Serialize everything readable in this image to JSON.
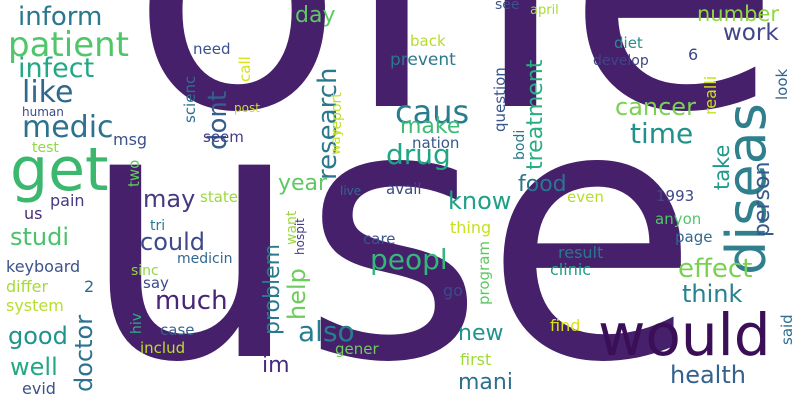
{
  "words": [
    {
      "text": "one",
      "color": "#46206b"
    },
    {
      "text": "use",
      "color": "#46206b"
    },
    {
      "text": "get",
      "color": "#3bb86d"
    },
    {
      "text": "would",
      "color": "#3a0f57"
    },
    {
      "text": "diseas",
      "color": "#2f7f8d"
    },
    {
      "text": "patient",
      "color": "#51c56a"
    },
    {
      "text": "inform",
      "color": "#2a788e"
    },
    {
      "text": "infect",
      "color": "#22a884"
    },
    {
      "text": "like",
      "color": "#31688e"
    },
    {
      "text": "medic",
      "color": "#2c728e"
    },
    {
      "text": "dont",
      "color": "#355f8d"
    },
    {
      "text": "caus",
      "color": "#287c8e"
    },
    {
      "text": "research",
      "color": "#2a788e"
    },
    {
      "text": "treatment",
      "color": "#29af7f"
    },
    {
      "text": "cancer",
      "color": "#7ad151"
    },
    {
      "text": "time",
      "color": "#21918c"
    },
    {
      "text": "work",
      "color": "#404688"
    },
    {
      "text": "number",
      "color": "#8fd744"
    },
    {
      "text": "day",
      "color": "#5ec962"
    },
    {
      "text": "make",
      "color": "#3dbc74"
    },
    {
      "text": "drug",
      "color": "#21a685"
    },
    {
      "text": "take",
      "color": "#1f9a8a"
    },
    {
      "text": "person",
      "color": "#38598c"
    },
    {
      "text": "food",
      "color": "#2b758e"
    },
    {
      "text": "year",
      "color": "#5ec962"
    },
    {
      "text": "know",
      "color": "#1fa088"
    },
    {
      "text": "may",
      "color": "#443983"
    },
    {
      "text": "studi",
      "color": "#4ac16d"
    },
    {
      "text": "could",
      "color": "#3e4989"
    },
    {
      "text": "peopl",
      "color": "#35b779"
    },
    {
      "text": "effect",
      "color": "#7ad151"
    },
    {
      "text": "think",
      "color": "#26828e"
    },
    {
      "text": "much",
      "color": "#482576"
    },
    {
      "text": "problem",
      "color": "#2a788e"
    },
    {
      "text": "help",
      "color": "#6ccd5a"
    },
    {
      "text": "also",
      "color": "#277f8e"
    },
    {
      "text": "good",
      "color": "#1f948c"
    },
    {
      "text": "doctor",
      "color": "#2c728e"
    },
    {
      "text": "well",
      "color": "#22a884"
    },
    {
      "text": "im",
      "color": "#472a7a"
    },
    {
      "text": "new",
      "color": "#1f948c"
    },
    {
      "text": "mani",
      "color": "#2d708e"
    },
    {
      "text": "health",
      "color": "#34618d"
    },
    {
      "text": "msg",
      "color": "#3b528b"
    },
    {
      "text": "test",
      "color": "#8fd744"
    },
    {
      "text": "human",
      "color": "#3e4989"
    },
    {
      "text": "two",
      "color": "#63cb5f"
    },
    {
      "text": "us",
      "color": "#472d7b"
    },
    {
      "text": "pain",
      "color": "#443a83"
    },
    {
      "text": "keyboard",
      "color": "#3b528b"
    },
    {
      "text": "differ",
      "color": "#a5db36"
    },
    {
      "text": "2",
      "color": "#31688e"
    },
    {
      "text": "system",
      "color": "#b5de2b"
    },
    {
      "text": "evid",
      "color": "#3b528b"
    },
    {
      "text": "tri",
      "color": "#287c8e"
    },
    {
      "text": "sinc",
      "color": "#8fd744"
    },
    {
      "text": "medicin",
      "color": "#31688e"
    },
    {
      "text": "say",
      "color": "#3e4989"
    },
    {
      "text": "hiv",
      "color": "#2ab07f"
    },
    {
      "text": "case",
      "color": "#355f8d"
    },
    {
      "text": "includ",
      "color": "#bddf26"
    },
    {
      "text": "need",
      "color": "#3b528b"
    },
    {
      "text": "scienc",
      "color": "#2e6e8e"
    },
    {
      "text": "seem",
      "color": "#443a83"
    },
    {
      "text": "post",
      "color": "#c8e020"
    },
    {
      "text": "call",
      "color": "#d8e219"
    },
    {
      "text": "report",
      "color": "#bddf26"
    },
    {
      "text": "way",
      "color": "#c8e020"
    },
    {
      "text": "back",
      "color": "#b5de2b"
    },
    {
      "text": "prevent",
      "color": "#2a788e"
    },
    {
      "text": "nation",
      "color": "#39568c"
    },
    {
      "text": "question",
      "color": "#39568c"
    },
    {
      "text": "bodi",
      "color": "#2a788e"
    },
    {
      "text": "see",
      "color": "#3b528b"
    },
    {
      "text": "april",
      "color": "#a5db36"
    },
    {
      "text": "diet",
      "color": "#21918c"
    },
    {
      "text": "develop",
      "color": "#414487"
    },
    {
      "text": "6",
      "color": "#3e4989"
    },
    {
      "text": "realli",
      "color": "#cae11f"
    },
    {
      "text": "look",
      "color": "#33638d"
    },
    {
      "text": "said",
      "color": "#2e6e8e"
    },
    {
      "text": "live",
      "color": "#31688e"
    },
    {
      "text": "avail",
      "color": "#3e4989"
    },
    {
      "text": "state",
      "color": "#9bd93c"
    },
    {
      "text": "want",
      "color": "#9bd93c"
    },
    {
      "text": "hospit",
      "color": "#443983"
    },
    {
      "text": "even",
      "color": "#b5de2b"
    },
    {
      "text": "1993",
      "color": "#3f4788"
    },
    {
      "text": "anyon",
      "color": "#54c568"
    },
    {
      "text": "page",
      "color": "#31688e"
    },
    {
      "text": "thing",
      "color": "#c8e020"
    },
    {
      "text": "care",
      "color": "#3b528b"
    },
    {
      "text": "result",
      "color": "#2a788e"
    },
    {
      "text": "clinic",
      "color": "#1f9e89"
    },
    {
      "text": "program",
      "color": "#5ec962"
    },
    {
      "text": "go",
      "color": "#3e4989"
    },
    {
      "text": "find",
      "color": "#d8e219"
    },
    {
      "text": "gener",
      "color": "#6ccd5a"
    },
    {
      "text": "first",
      "color": "#a0da39"
    }
  ]
}
